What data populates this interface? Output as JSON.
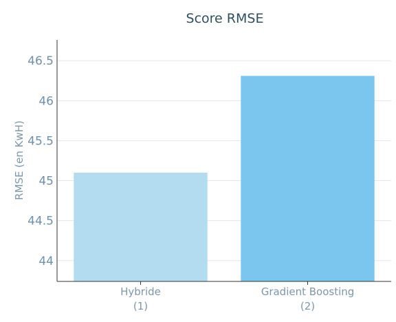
{
  "chart_data": {
    "type": "bar",
    "title": "Score RMSE",
    "xlabel": "",
    "ylabel": "RMSE (en KwH)",
    "categories": [
      {
        "line1": "Hybride",
        "line2": "(1)"
      },
      {
        "line1": "Gradient Boosting",
        "line2": "(2)"
      }
    ],
    "values": [
      45.1,
      46.31
    ],
    "bar_colors": [
      "#b4dcf0",
      "#7ac6ee"
    ],
    "ylim": [
      43.74,
      46.76
    ],
    "yticks": [
      "44",
      "44.5",
      "45",
      "45.5",
      "46",
      "46.5"
    ],
    "grid": true,
    "legend": "none"
  }
}
